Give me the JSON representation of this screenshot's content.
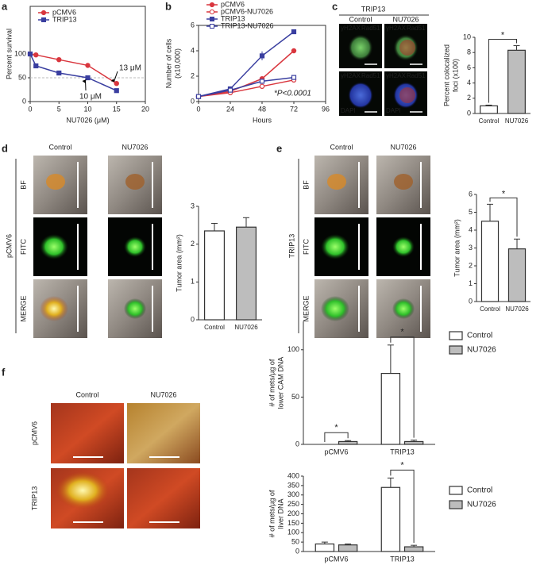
{
  "panel_labels": [
    "a",
    "b",
    "c",
    "d",
    "e",
    "f"
  ],
  "chart_data": [
    {
      "type": "line",
      "xlabel": "NU7026 (μM)",
      "ylabel": "Percent survival",
      "x": [
        0,
        1,
        5,
        10,
        15
      ],
      "xlim": [
        0,
        20
      ],
      "xticks": [
        0,
        5,
        10,
        15,
        20
      ],
      "ylim": [
        0,
        200
      ],
      "yticks": [
        0,
        50,
        100
      ],
      "reference_line": 50,
      "series": [
        {
          "name": "pCMV6",
          "color": "#d9363e",
          "marker": "circle",
          "open": false,
          "values": [
            100,
            98,
            88,
            76,
            38
          ]
        },
        {
          "name": "TRIP13",
          "color": "#3a3fa0",
          "marker": "square",
          "open": false,
          "values": [
            100,
            75,
            60,
            50,
            23
          ]
        }
      ],
      "annotations": [
        "13 μM",
        "10 μM"
      ]
    },
    {
      "type": "line",
      "xlabel": "Hours",
      "ylabel": [
        "Number of cells",
        "(x10,000)"
      ],
      "x": [
        0,
        24,
        48,
        72
      ],
      "xlim": [
        0,
        96
      ],
      "xticks": [
        0,
        24,
        48,
        72,
        96
      ],
      "ylim": [
        0,
        6
      ],
      "yticks": [
        0,
        2,
        4,
        6
      ],
      "series": [
        {
          "name": "pCMV6",
          "color": "#d9363e",
          "marker": "circle",
          "open": false,
          "values": [
            0.4,
            0.8,
            1.8,
            4.0
          ]
        },
        {
          "name": "pCMV6-NU7026",
          "color": "#d9363e",
          "marker": "circle",
          "open": true,
          "values": [
            0.4,
            0.7,
            1.2,
            1.7
          ]
        },
        {
          "name": "TRIP13",
          "color": "#3a3fa0",
          "marker": "square",
          "open": false,
          "values": [
            0.4,
            1.0,
            3.6,
            5.5
          ],
          "errors": [
            0,
            0.05,
            0.35,
            0.1
          ]
        },
        {
          "name": "TRIP13-NU7026",
          "color": "#3a3fa0",
          "marker": "square",
          "open": true,
          "values": [
            0.4,
            0.9,
            1.6,
            1.9
          ]
        }
      ],
      "annotations": [
        "*P<0.0001"
      ]
    },
    {
      "type": "bar",
      "ylabel": [
        "Percent colocalized",
        "foci (x100)"
      ],
      "categories": [
        "Control",
        "NU7026"
      ],
      "values": [
        1.0,
        8.3
      ],
      "errors": [
        0.1,
        0.6
      ],
      "colors": [
        "#ffffff",
        "#bdbdbd"
      ],
      "ylim": [
        0,
        10
      ],
      "yticks": [
        0,
        2,
        4,
        6,
        8,
        10
      ],
      "significance": "*"
    },
    {
      "type": "bar",
      "ylabel": "Tumor area (mm²)",
      "categories": [
        "Control",
        "NU7026"
      ],
      "values": [
        2.35,
        2.45
      ],
      "errors": [
        0.2,
        0.25
      ],
      "colors": [
        "#ffffff",
        "#bdbdbd"
      ],
      "ylim": [
        0,
        3
      ],
      "yticks": [
        0,
        1,
        2,
        3
      ]
    },
    {
      "type": "bar",
      "ylabel": "Tumor area (mm²)",
      "categories": [
        "Control",
        "NU7026"
      ],
      "values": [
        4.5,
        2.95
      ],
      "errors": [
        0.95,
        0.55
      ],
      "colors": [
        "#ffffff",
        "#bdbdbd"
      ],
      "ylim": [
        0,
        6
      ],
      "yticks": [
        0,
        1,
        2,
        3,
        4,
        5,
        6
      ],
      "significance": "*"
    },
    {
      "type": "grouped_bar",
      "ylabel": [
        "# of mets/µg of",
        "lower CAM DNA"
      ],
      "categories": [
        "pCMV6",
        "TRIP13"
      ],
      "ylim": [
        0,
        130
      ],
      "yticks": [
        0,
        50,
        100
      ],
      "series": [
        {
          "name": "Control",
          "color": "#ffffff",
          "values": [
            0,
            75
          ],
          "errors": [
            0,
            30
          ]
        },
        {
          "name": "NU7026",
          "color": "#bdbdbd",
          "values": [
            3,
            3
          ],
          "errors": [
            1,
            1.5
          ]
        }
      ],
      "significance": [
        "*",
        "*"
      ]
    },
    {
      "type": "grouped_bar",
      "ylabel": [
        "# of mets/µg of",
        "liver DNA"
      ],
      "categories": [
        "pCMV6",
        "TRIP13"
      ],
      "ylim": [
        0,
        400
      ],
      "yticks": [
        0,
        50,
        100,
        150,
        200,
        250,
        300,
        350,
        400
      ],
      "series": [
        {
          "name": "Control",
          "color": "#ffffff",
          "values": [
            40,
            340
          ],
          "errors": [
            10,
            50
          ]
        },
        {
          "name": "NU7026",
          "color": "#bdbdbd",
          "values": [
            35,
            25
          ],
          "errors": [
            5,
            8
          ]
        }
      ],
      "significance": [
        null,
        "*"
      ]
    }
  ],
  "image_panels": {
    "c": {
      "group": "TRIP13",
      "columns": [
        "Control",
        "NU7026"
      ],
      "stains": [
        [
          "γH2AX",
          "Rad51"
        ],
        [
          "γH2AX",
          "Rad51"
        ],
        [
          "γH2AX",
          "Rad51",
          "DAPI"
        ],
        [
          "γH2AX",
          "Rad51",
          "DAPI"
        ]
      ]
    },
    "d": {
      "group": "pCMV6",
      "columns": [
        "Control",
        "NU7026"
      ],
      "rows": [
        "BF",
        "FITC",
        "MERGE"
      ]
    },
    "e": {
      "group": "TRIP13",
      "columns": [
        "Control",
        "NU7026"
      ],
      "rows": [
        "BF",
        "FITC",
        "MERGE"
      ]
    },
    "f": {
      "columns": [
        "Control",
        "NU7026"
      ],
      "rows": [
        "pCMV6",
        "TRIP13"
      ]
    }
  }
}
